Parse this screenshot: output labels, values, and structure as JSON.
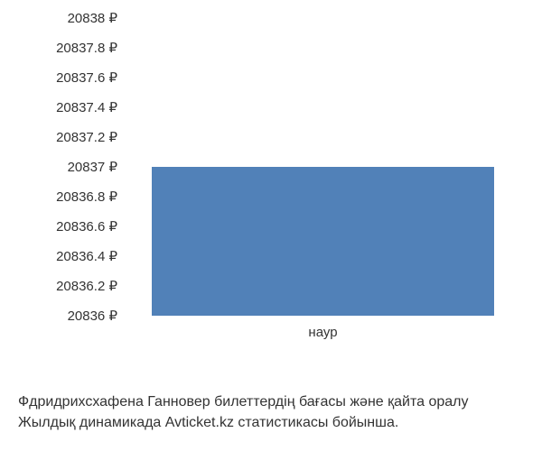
{
  "chart": {
    "type": "bar",
    "background_color": "#ffffff",
    "text_color": "#333333",
    "font_family": "Arial, sans-serif",
    "y_axis": {
      "fontsize": 15,
      "tick_color": "#333333",
      "ticks": [
        {
          "label": "20838 ₽",
          "value": 20838
        },
        {
          "label": "20837.8 ₽",
          "value": 20837.8
        },
        {
          "label": "20837.6 ₽",
          "value": 20837.6
        },
        {
          "label": "20837.4 ₽",
          "value": 20837.4
        },
        {
          "label": "20837.2 ₽",
          "value": 20837.2
        },
        {
          "label": "20837 ₽",
          "value": 20837
        },
        {
          "label": "20836.8 ₽",
          "value": 20836.8
        },
        {
          "label": "20836.6 ₽",
          "value": 20836.6
        },
        {
          "label": "20836.4 ₽",
          "value": 20836.4
        },
        {
          "label": "20836.2 ₽",
          "value": 20836.2
        },
        {
          "label": "20836 ₽",
          "value": 20836
        }
      ],
      "ymin": 20836,
      "ymax": 20838
    },
    "x_axis": {
      "fontsize": 15,
      "tick_color": "#333333",
      "categories": [
        "наур"
      ]
    },
    "series": {
      "bar_color": "#5181b8",
      "bar_width_fraction": 0.85,
      "values": [
        20837
      ]
    }
  },
  "caption": {
    "line1": "Фдридрихсхафена Ганновер билеттердің бағасы және қайта оралу",
    "line2": "Жылдық динамикада Avticket.kz статистикасы бойынша.",
    "fontsize": 16,
    "color": "#333333"
  }
}
